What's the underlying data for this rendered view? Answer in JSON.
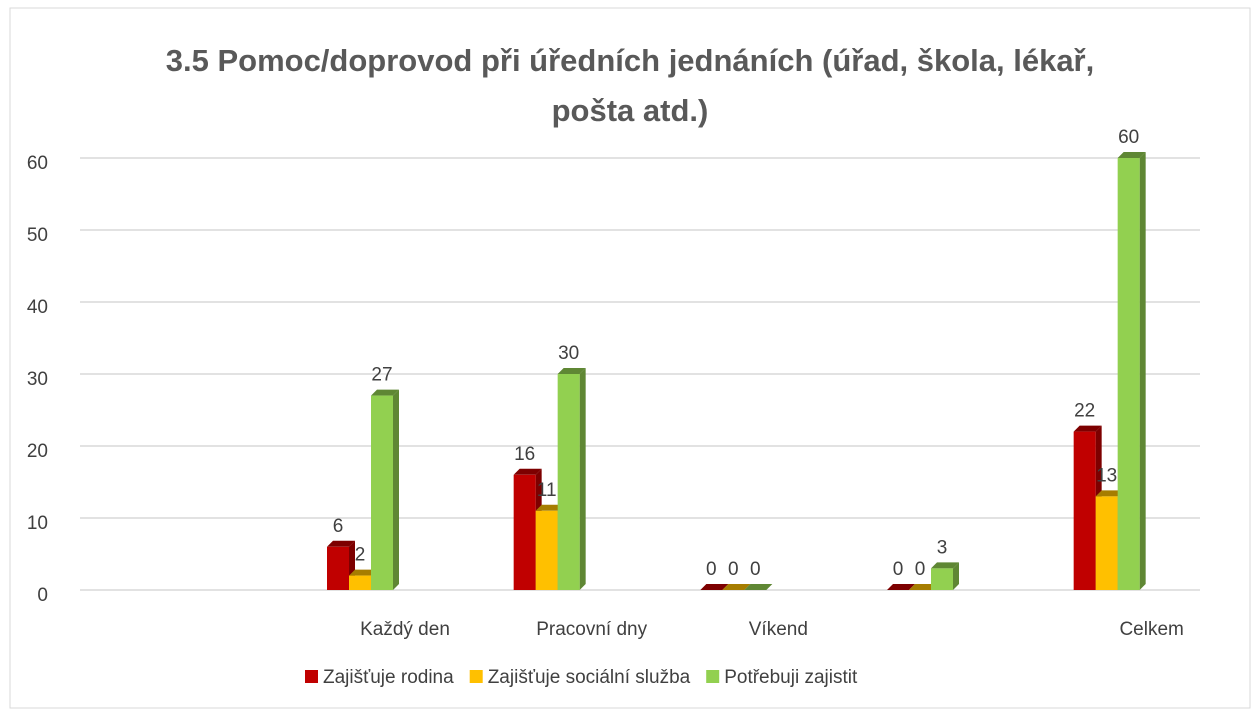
{
  "chart_data": {
    "type": "bar",
    "title": "3.5 Pomoc/doprovod při úředních jednáních (úřad, škola, lékař, pošta atd.)",
    "categories": [
      null,
      "Každý den",
      "Pracovní dny",
      "Víkend",
      null,
      "Celkem"
    ],
    "series": [
      {
        "name": "Zajišťuje rodina",
        "color": "#c00000",
        "values": [
          null,
          6,
          16,
          0,
          0,
          22
        ]
      },
      {
        "name": "Zajišťuje sociální služba",
        "color": "#ffc000",
        "values": [
          null,
          2,
          11,
          0,
          0,
          13
        ]
      },
      {
        "name": "Potřebuji zajistit",
        "color": "#92d050",
        "values": [
          null,
          27,
          30,
          0,
          3,
          60
        ]
      }
    ],
    "ylim": [
      0,
      60
    ],
    "yticks": [
      0,
      10,
      20,
      30,
      40,
      50,
      60
    ],
    "grid": true,
    "legend": "bottom"
  }
}
